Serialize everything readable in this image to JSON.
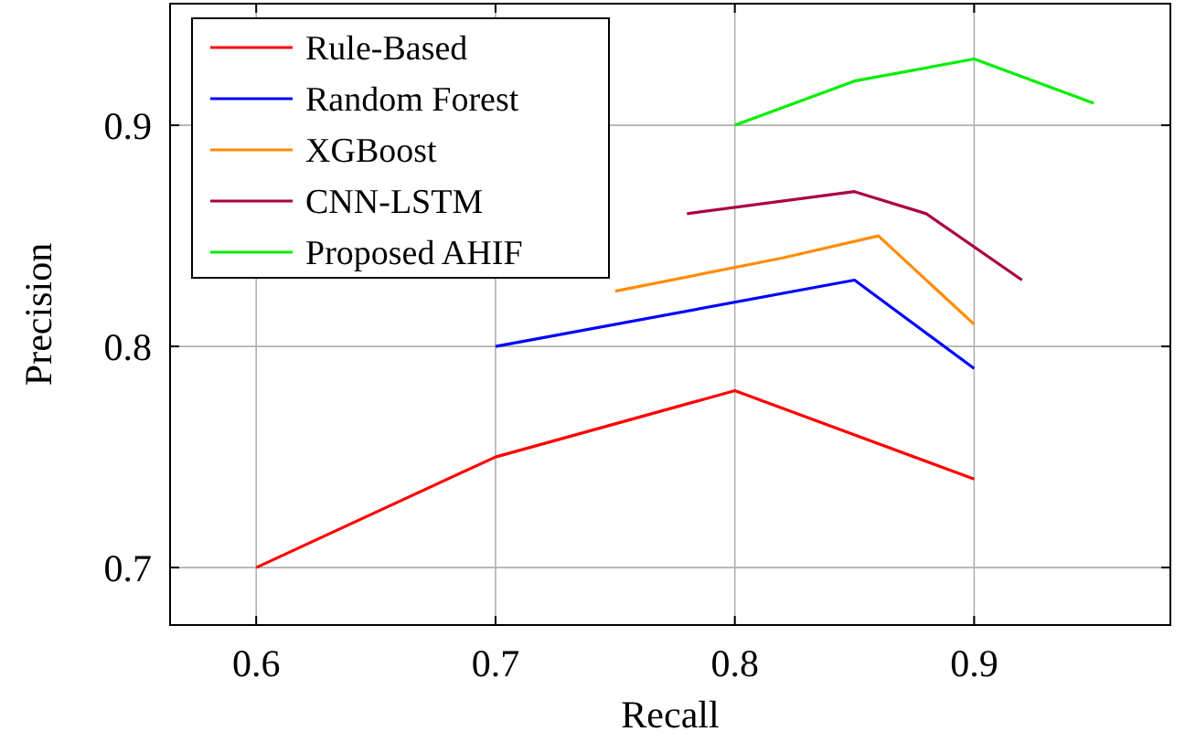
{
  "chart_data": {
    "type": "line",
    "xlabel": "Recall",
    "ylabel": "Precision",
    "xlim": [
      0.564,
      0.982
    ],
    "ylim": [
      0.674,
      0.955
    ],
    "xticks": [
      0.6,
      0.7,
      0.8,
      0.9
    ],
    "yticks": [
      0.7,
      0.8,
      0.9
    ],
    "grid": true,
    "legend": "top left",
    "marker": "none",
    "line_style": "solid",
    "series": [
      {
        "name": "Rule-Based",
        "color": "#ff0000",
        "x": [
          0.6,
          0.7,
          0.8,
          0.9
        ],
        "values": [
          0.7,
          0.75,
          0.78,
          0.74
        ]
      },
      {
        "name": "Random Forest",
        "color": "#0000ff",
        "x": [
          0.7,
          0.85,
          0.9
        ],
        "values": [
          0.8,
          0.83,
          0.79
        ]
      },
      {
        "name": "XGBoost",
        "color": "#ff8c00",
        "x": [
          0.75,
          0.82,
          0.86,
          0.9
        ],
        "values": [
          0.825,
          0.84,
          0.85,
          0.81
        ]
      },
      {
        "name": "CNN-LSTM",
        "color": "#aa0044",
        "x": [
          0.78,
          0.85,
          0.88,
          0.92
        ],
        "values": [
          0.86,
          0.87,
          0.86,
          0.83
        ]
      },
      {
        "name": "Proposed AHIF",
        "color": "#00ee00",
        "x": [
          0.8,
          0.85,
          0.9,
          0.95
        ],
        "values": [
          0.9,
          0.92,
          0.93,
          0.91
        ]
      }
    ]
  }
}
